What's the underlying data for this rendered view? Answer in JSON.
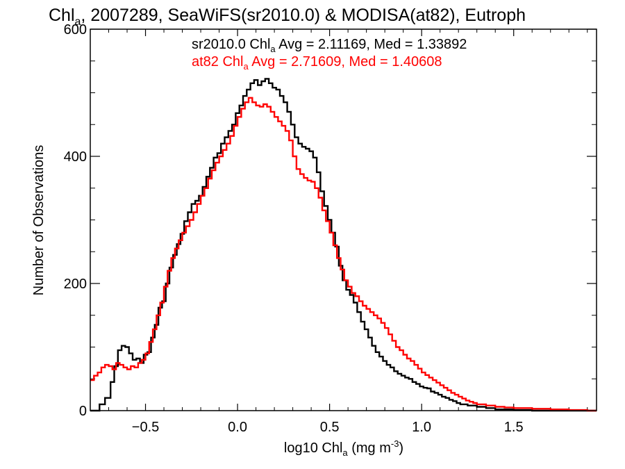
{
  "chart_data": {
    "type": "line",
    "title": {
      "main": "Chl",
      "sub": "a",
      "rest": ", 2007289, SeaWiFS(sr2010.0) & MODISA(at82), Eutroph"
    },
    "xlabel": {
      "main": "log10 Chl",
      "sub": "a",
      "unit_pre": " (mg m",
      "unit_sup": "-3",
      "unit_post": ")"
    },
    "ylabel": "Number of Observations",
    "xlim": [
      -0.8,
      1.95
    ],
    "ylim": [
      0,
      600
    ],
    "x_ticks": [
      -0.5,
      0.0,
      0.5,
      1.0,
      1.5
    ],
    "x_tick_labels": [
      "−0.5",
      "0.0",
      "0.5",
      "1.0",
      "1.5"
    ],
    "y_ticks": [
      0,
      200,
      400,
      600
    ],
    "y_tick_labels": [
      "0",
      "200",
      "400",
      "600"
    ],
    "legend": [
      {
        "pre": "sr2010.0 Chl",
        "sub": "a",
        "post": " Avg = 2.11169, Med = 1.33892",
        "color": "#000000"
      },
      {
        "pre": "at82 Chl",
        "sub": "a",
        "post": " Avg = 2.71609, Med = 1.40608",
        "color": "#ff0000"
      }
    ],
    "series": [
      {
        "color": "#000000",
        "points": [
          [
            -0.8,
            0
          ],
          [
            -0.75,
            10
          ],
          [
            -0.72,
            20
          ],
          [
            -0.69,
            45
          ],
          [
            -0.67,
            70
          ],
          [
            -0.65,
            95
          ],
          [
            -0.63,
            102
          ],
          [
            -0.61,
            100
          ],
          [
            -0.59,
            90
          ],
          [
            -0.57,
            80
          ],
          [
            -0.55,
            82
          ],
          [
            -0.53,
            75
          ],
          [
            -0.51,
            88
          ],
          [
            -0.49,
            92
          ],
          [
            -0.47,
            115
          ],
          [
            -0.45,
            135
          ],
          [
            -0.43,
            162
          ],
          [
            -0.41,
            172
          ],
          [
            -0.39,
            200
          ],
          [
            -0.37,
            225
          ],
          [
            -0.35,
            245
          ],
          [
            -0.33,
            262
          ],
          [
            -0.31,
            278
          ],
          [
            -0.29,
            298
          ],
          [
            -0.27,
            312
          ],
          [
            -0.25,
            325
          ],
          [
            -0.23,
            330
          ],
          [
            -0.21,
            338
          ],
          [
            -0.19,
            352
          ],
          [
            -0.17,
            368
          ],
          [
            -0.15,
            382
          ],
          [
            -0.13,
            398
          ],
          [
            -0.11,
            405
          ],
          [
            -0.09,
            420
          ],
          [
            -0.07,
            430
          ],
          [
            -0.05,
            440
          ],
          [
            -0.03,
            450
          ],
          [
            -0.01,
            468
          ],
          [
            0.01,
            480
          ],
          [
            0.03,
            495
          ],
          [
            0.05,
            505
          ],
          [
            0.07,
            515
          ],
          [
            0.09,
            520
          ],
          [
            0.11,
            512
          ],
          [
            0.13,
            518
          ],
          [
            0.15,
            522
          ],
          [
            0.17,
            515
          ],
          [
            0.19,
            508
          ],
          [
            0.21,
            505
          ],
          [
            0.23,
            495
          ],
          [
            0.25,
            485
          ],
          [
            0.27,
            470
          ],
          [
            0.29,
            450
          ],
          [
            0.31,
            430
          ],
          [
            0.33,
            420
          ],
          [
            0.35,
            415
          ],
          [
            0.37,
            412
          ],
          [
            0.39,
            408
          ],
          [
            0.41,
            398
          ],
          [
            0.43,
            375
          ],
          [
            0.45,
            345
          ],
          [
            0.47,
            322
          ],
          [
            0.49,
            300
          ],
          [
            0.51,
            280
          ],
          [
            0.53,
            258
          ],
          [
            0.55,
            228
          ],
          [
            0.57,
            205
          ],
          [
            0.59,
            190
          ],
          [
            0.61,
            182
          ],
          [
            0.63,
            170
          ],
          [
            0.65,
            155
          ],
          [
            0.67,
            140
          ],
          [
            0.69,
            128
          ],
          [
            0.71,
            115
          ],
          [
            0.73,
            102
          ],
          [
            0.75,
            92
          ],
          [
            0.77,
            85
          ],
          [
            0.79,
            78
          ],
          [
            0.81,
            72
          ],
          [
            0.83,
            68
          ],
          [
            0.85,
            62
          ],
          [
            0.87,
            58
          ],
          [
            0.89,
            55
          ],
          [
            0.91,
            52
          ],
          [
            0.93,
            50
          ],
          [
            0.95,
            45
          ],
          [
            0.97,
            42
          ],
          [
            0.99,
            38
          ],
          [
            1.01,
            36
          ],
          [
            1.03,
            35
          ],
          [
            1.05,
            30
          ],
          [
            1.07,
            28
          ],
          [
            1.09,
            25
          ],
          [
            1.11,
            22
          ],
          [
            1.13,
            20
          ],
          [
            1.15,
            17
          ],
          [
            1.17,
            15
          ],
          [
            1.19,
            12
          ],
          [
            1.21,
            10
          ],
          [
            1.25,
            8
          ],
          [
            1.3,
            6
          ],
          [
            1.35,
            4
          ],
          [
            1.4,
            2
          ],
          [
            1.5,
            1
          ],
          [
            1.6,
            0
          ],
          [
            1.95,
            0
          ]
        ]
      },
      {
        "color": "#ff0000",
        "points": [
          [
            -0.8,
            48
          ],
          [
            -0.78,
            55
          ],
          [
            -0.76,
            60
          ],
          [
            -0.74,
            68
          ],
          [
            -0.72,
            72
          ],
          [
            -0.7,
            70
          ],
          [
            -0.68,
            65
          ],
          [
            -0.66,
            75
          ],
          [
            -0.64,
            72
          ],
          [
            -0.62,
            68
          ],
          [
            -0.6,
            65
          ],
          [
            -0.58,
            70
          ],
          [
            -0.56,
            68
          ],
          [
            -0.54,
            75
          ],
          [
            -0.52,
            80
          ],
          [
            -0.5,
            90
          ],
          [
            -0.48,
            108
          ],
          [
            -0.46,
            128
          ],
          [
            -0.44,
            150
          ],
          [
            -0.42,
            170
          ],
          [
            -0.4,
            195
          ],
          [
            -0.38,
            220
          ],
          [
            -0.36,
            240
          ],
          [
            -0.34,
            255
          ],
          [
            -0.32,
            268
          ],
          [
            -0.3,
            280
          ],
          [
            -0.28,
            290
          ],
          [
            -0.26,
            300
          ],
          [
            -0.24,
            312
          ],
          [
            -0.22,
            325
          ],
          [
            -0.2,
            338
          ],
          [
            -0.18,
            350
          ],
          [
            -0.16,
            365
          ],
          [
            -0.14,
            378
          ],
          [
            -0.12,
            390
          ],
          [
            -0.1,
            400
          ],
          [
            -0.08,
            410
          ],
          [
            -0.06,
            420
          ],
          [
            -0.04,
            432
          ],
          [
            -0.02,
            448
          ],
          [
            0.0,
            462
          ],
          [
            0.02,
            475
          ],
          [
            0.04,
            485
          ],
          [
            0.06,
            492
          ],
          [
            0.08,
            485
          ],
          [
            0.1,
            480
          ],
          [
            0.12,
            478
          ],
          [
            0.14,
            482
          ],
          [
            0.16,
            478
          ],
          [
            0.18,
            470
          ],
          [
            0.2,
            462
          ],
          [
            0.22,
            455
          ],
          [
            0.24,
            448
          ],
          [
            0.26,
            440
          ],
          [
            0.28,
            425
          ],
          [
            0.3,
            400
          ],
          [
            0.32,
            380
          ],
          [
            0.34,
            372
          ],
          [
            0.36,
            366
          ],
          [
            0.38,
            362
          ],
          [
            0.4,
            360
          ],
          [
            0.42,
            350
          ],
          [
            0.44,
            335
          ],
          [
            0.46,
            315
          ],
          [
            0.48,
            298
          ],
          [
            0.5,
            280
          ],
          [
            0.52,
            260
          ],
          [
            0.54,
            240
          ],
          [
            0.56,
            222
          ],
          [
            0.58,
            205
          ],
          [
            0.6,
            195
          ],
          [
            0.62,
            185
          ],
          [
            0.64,
            180
          ],
          [
            0.66,
            172
          ],
          [
            0.68,
            165
          ],
          [
            0.7,
            160
          ],
          [
            0.72,
            155
          ],
          [
            0.74,
            150
          ],
          [
            0.76,
            145
          ],
          [
            0.78,
            138
          ],
          [
            0.8,
            130
          ],
          [
            0.82,
            120
          ],
          [
            0.84,
            110
          ],
          [
            0.86,
            100
          ],
          [
            0.88,
            95
          ],
          [
            0.9,
            88
          ],
          [
            0.92,
            82
          ],
          [
            0.94,
            78
          ],
          [
            0.96,
            72
          ],
          [
            0.98,
            66
          ],
          [
            1.0,
            60
          ],
          [
            1.02,
            56
          ],
          [
            1.04,
            52
          ],
          [
            1.06,
            48
          ],
          [
            1.08,
            44
          ],
          [
            1.1,
            40
          ],
          [
            1.12,
            36
          ],
          [
            1.14,
            32
          ],
          [
            1.16,
            28
          ],
          [
            1.18,
            25
          ],
          [
            1.2,
            22
          ],
          [
            1.22,
            19
          ],
          [
            1.24,
            16
          ],
          [
            1.26,
            14
          ],
          [
            1.28,
            12
          ],
          [
            1.3,
            10
          ],
          [
            1.35,
            8
          ],
          [
            1.4,
            6
          ],
          [
            1.45,
            5
          ],
          [
            1.5,
            4
          ],
          [
            1.6,
            3
          ],
          [
            1.7,
            2
          ],
          [
            1.8,
            1
          ],
          [
            1.9,
            0
          ],
          [
            1.95,
            0
          ]
        ]
      }
    ]
  }
}
